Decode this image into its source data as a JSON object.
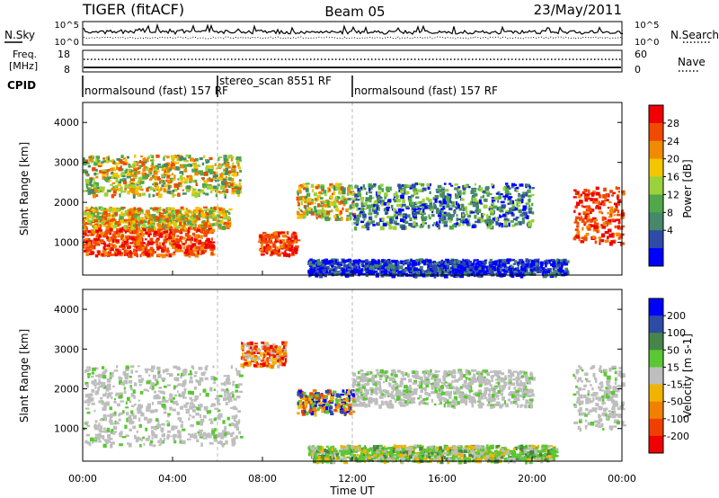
{
  "header": {
    "station": "TIGER (fitACF)",
    "beam": "Beam 05",
    "date": "23/May/2011"
  },
  "summary": {
    "nsky_label": "N.Sky",
    "nsearch_label": "N.Search",
    "noise_ticks": [
      "10^5",
      "10^0"
    ],
    "freq_label_1": "Freq.",
    "freq_label_2": "[MHz]",
    "freq_ticks": [
      "18",
      "8"
    ],
    "nave_label": "Nave",
    "nave_ticks": [
      "60",
      "0"
    ],
    "cpid_label": "CPID",
    "programs": [
      {
        "name": "normalsound (fast) 157 RF",
        "start_hour": 0
      },
      {
        "name": "stereo_scan 8551 RF",
        "start_hour": 6
      },
      {
        "name": "normalsound (fast) 157 RF",
        "start_hour": 12
      }
    ]
  },
  "colors": {
    "power": [
      "#0000ff",
      "#2e4ba6",
      "#45886a",
      "#50a84a",
      "#9bd23c",
      "#f2c600",
      "#f08a00",
      "#f04a00",
      "#f00000"
    ],
    "velocity": [
      "#0000ff",
      "#2e4ba6",
      "#46864a",
      "#5ac832",
      "#bebebe",
      "#f0b400",
      "#f08000",
      "#f04000",
      "#f00000"
    ]
  },
  "chart_data": [
    {
      "type": "heatmap",
      "quantity": "Power",
      "ylabel": "Slant Range [km]",
      "colorbar_label": "Power [dB]",
      "colorbar_ticks": [
        4,
        8,
        12,
        16,
        20,
        24,
        28
      ],
      "ylim": [
        180,
        4500
      ],
      "y_ticks": [
        1000,
        2000,
        3000,
        4000
      ],
      "xlim": [
        0,
        24
      ],
      "x_ticks_hours": [
        0,
        4,
        8,
        12,
        16,
        20,
        24
      ],
      "regions": [
        {
          "t": [
            0,
            5.8
          ],
          "r": [
            700,
            1400
          ],
          "level": "high"
        },
        {
          "t": [
            0,
            6.5
          ],
          "r": [
            1400,
            1900
          ],
          "level": "mid"
        },
        {
          "t": [
            0,
            7.0
          ],
          "r": [
            2200,
            3200
          ],
          "level": "mixed"
        },
        {
          "t": [
            7.8,
            9.5
          ],
          "r": [
            700,
            1300
          ],
          "level": "high"
        },
        {
          "t": [
            9.5,
            12.0
          ],
          "r": [
            1600,
            2500
          ],
          "level": "mixed"
        },
        {
          "t": [
            12.0,
            20.0
          ],
          "r": [
            1400,
            2500
          ],
          "level": "low-mid"
        },
        {
          "t": [
            10.0,
            21.5
          ],
          "r": [
            200,
            600
          ],
          "level": "low"
        },
        {
          "t": [
            21.8,
            24.0
          ],
          "r": [
            1000,
            2400
          ],
          "level": "high"
        }
      ]
    },
    {
      "type": "heatmap",
      "quantity": "Velocity",
      "ylabel": "Slant Range [km]",
      "colorbar_label": "Velocity [m s-1]",
      "colorbar_ticks": [
        200,
        100,
        50,
        15,
        -15,
        -50,
        -100,
        -200
      ],
      "ylim": [
        180,
        4500
      ],
      "y_ticks": [
        1000,
        2000,
        3000,
        4000
      ],
      "xlim": [
        0,
        24
      ],
      "x_ticks_hours": [
        0,
        4,
        8,
        12,
        16,
        20,
        24
      ],
      "regions": [
        {
          "t": [
            0,
            7.0
          ],
          "r": [
            600,
            2600
          ],
          "level": "near-zero"
        },
        {
          "t": [
            7.0,
            9.0
          ],
          "r": [
            2600,
            3200
          ],
          "level": "negative"
        },
        {
          "t": [
            9.5,
            12.0
          ],
          "r": [
            1400,
            2000
          ],
          "level": "mixed"
        },
        {
          "t": [
            12.0,
            20.0
          ],
          "r": [
            1600,
            2500
          ],
          "level": "near-zero"
        },
        {
          "t": [
            10.0,
            21.0
          ],
          "r": [
            200,
            600
          ],
          "level": "positive"
        },
        {
          "t": [
            21.8,
            24.0
          ],
          "r": [
            1000,
            2600
          ],
          "level": "near-zero"
        }
      ]
    }
  ],
  "xaxis": {
    "tick_labels": [
      "00:00",
      "04:00",
      "08:00",
      "12:00",
      "16:00",
      "20:00",
      "00:00"
    ],
    "label": "Time UT"
  }
}
